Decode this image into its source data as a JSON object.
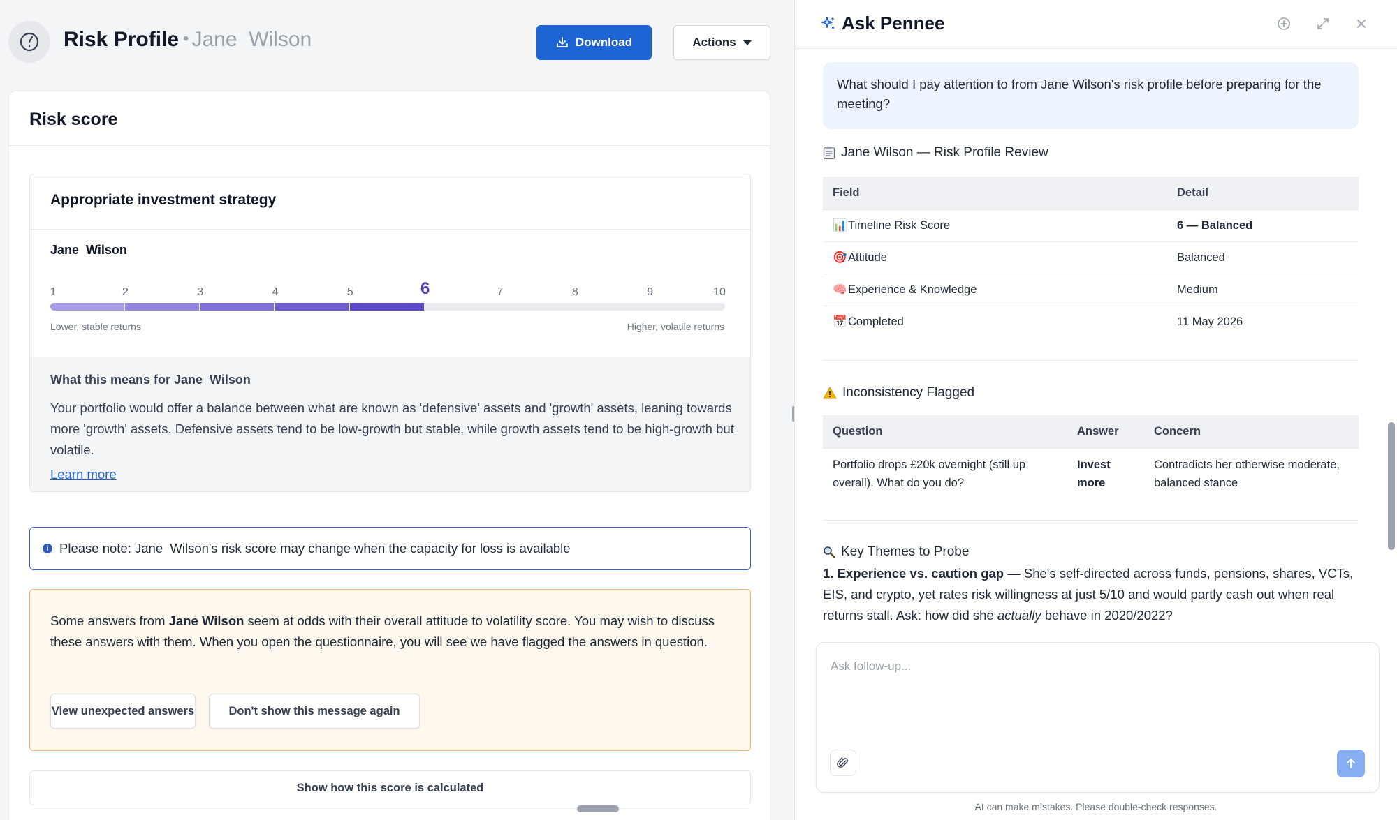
{
  "header": {
    "title": "Risk Profile",
    "separator": "•",
    "client_name": "Jane  Wilson",
    "download_label": "Download",
    "actions_label": "Actions"
  },
  "risk_card": {
    "title": "Risk score",
    "strategy_title": "Appropriate investment strategy",
    "client_name": "Jane  Wilson",
    "scale_labels": [
      "1",
      "2",
      "3",
      "4",
      "5",
      "6",
      "7",
      "8",
      "9",
      "10"
    ],
    "score": 6,
    "low_label": "Lower, stable returns",
    "high_label": "Higher, volatile returns",
    "means_title": "What this means for Jane  Wilson",
    "means_body": "Your portfolio would offer a balance between what are known as 'defensive' assets and 'growth' assets, leaning towards more 'growth' assets. Defensive assets tend to be low-growth but stable, while growth assets tend to be high-growth but volatile.",
    "learn_more": "Learn more",
    "note": "Please note: Jane  Wilson's risk score may change when the capacity for loss is available",
    "warning_pre": "Some answers from ",
    "warning_name": "Jane Wilson",
    "warning_post": " seem at odds with their overall attitude to volatility score. You may wish to discuss these answers with them. When you open the questionnaire, you will see we have flagged the answers in question.",
    "view_answers_label": "View unexpected answers",
    "dont_show_label": "Don't show this message again",
    "show_calc_label": "Show how this score is calculated"
  },
  "chat": {
    "title": "Ask Pennee",
    "user_message": "What should I pay attention to from Jane Wilson's risk profile before preparing for the meeting?",
    "review_heading": "Jane Wilson — Risk Profile Review",
    "review_headers": [
      "Field",
      "Detail"
    ],
    "review_rows": [
      {
        "emoji": "📊",
        "field": "Timeline Risk Score",
        "detail": "6 — Balanced",
        "bold": true
      },
      {
        "emoji": "🎯",
        "field": "Attitude",
        "detail": "Balanced",
        "bold": false
      },
      {
        "emoji": "🧠",
        "field": "Experience & Knowledge",
        "detail": "Medium",
        "bold": false
      },
      {
        "emoji": "📅",
        "field": "Completed",
        "detail": "11 May 2026",
        "bold": false
      }
    ],
    "inconsistency_heading": "Inconsistency Flagged",
    "inconsistency_headers": [
      "Question",
      "Answer",
      "Concern"
    ],
    "inconsistency_row": {
      "question": "Portfolio drops £20k overnight (still up overall). What do you do?",
      "answer": "Invest more",
      "concern": "Contradicts her otherwise moderate, balanced stance"
    },
    "themes_heading": "Key Themes to Probe",
    "theme1_title": "1. Experience vs. caution gap",
    "theme1_pre": " — She's self-directed across funds, pensions, shares, VCTs, EIS, and crypto, yet rates risk willingness at just 5/10 and would partly cash out when real returns stall. Ask: how did she ",
    "theme1_em": "actually",
    "theme1_post": " behave in 2020/2022?",
    "composer_placeholder": "Ask follow-up...",
    "disclaimer": "AI can make mistakes. Please double-check responses."
  },
  "colors": {
    "primary": "#1c64d4",
    "score_active": "#4c3fb4",
    "warning_border": "#f2ad6c",
    "warning_bg": "#fff8ef",
    "note_border": "#3b63c4"
  }
}
